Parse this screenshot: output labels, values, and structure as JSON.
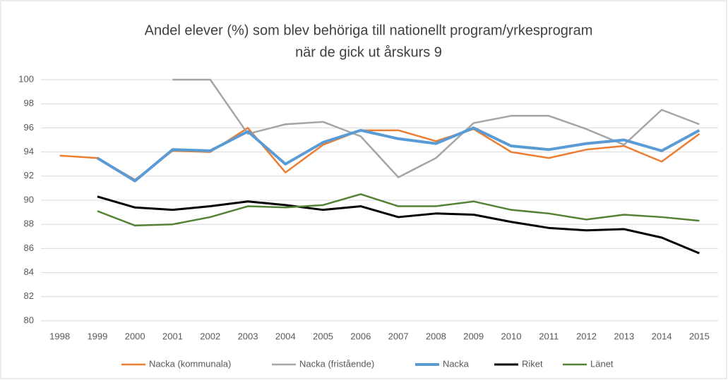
{
  "chart_data": {
    "type": "line",
    "title": [
      "Andel elever (%) som blev behöriga till nationellt program/yrkesprogram",
      "när de gick ut årskurs 9"
    ],
    "categories": [
      "1998",
      "1999",
      "2000",
      "2001",
      "2002",
      "2003",
      "2004",
      "2005",
      "2006",
      "2007",
      "2008",
      "2009",
      "2010",
      "2011",
      "2012",
      "2013",
      "2014",
      "2015"
    ],
    "series": [
      {
        "name": "Nacka (kommunala)",
        "color": "#ed7d31",
        "width": 2.5,
        "values": [
          93.7,
          93.5,
          91.7,
          94.1,
          94.0,
          96.0,
          92.3,
          94.6,
          95.8,
          95.8,
          94.9,
          95.9,
          94.0,
          93.5,
          94.2,
          94.5,
          93.2,
          95.5
        ]
      },
      {
        "name": "Nacka (fristående)",
        "color": "#a5a5a5",
        "width": 2.5,
        "values": [
          null,
          null,
          null,
          100,
          100,
          95.5,
          96.3,
          96.5,
          95.3,
          91.9,
          93.5,
          96.4,
          97.0,
          97.0,
          95.9,
          94.6,
          97.5,
          96.3
        ]
      },
      {
        "name": "Nacka",
        "color": "#5b9bd5",
        "width": 4,
        "values": [
          null,
          93.5,
          91.6,
          94.2,
          94.1,
          95.7,
          93.0,
          94.8,
          95.8,
          95.1,
          94.7,
          96.0,
          94.5,
          94.2,
          94.7,
          95.0,
          94.1,
          95.8
        ]
      },
      {
        "name": "Riket",
        "color": "#000000",
        "width": 3,
        "values": [
          null,
          90.3,
          89.4,
          89.2,
          89.5,
          89.9,
          89.6,
          89.2,
          89.5,
          88.6,
          88.9,
          88.8,
          88.2,
          87.7,
          87.5,
          87.6,
          86.9,
          85.6
        ]
      },
      {
        "name": "Länet",
        "color": "#548235",
        "width": 2.5,
        "values": [
          null,
          89.1,
          87.9,
          88.0,
          88.6,
          89.5,
          89.4,
          89.6,
          90.5,
          89.5,
          89.5,
          89.9,
          89.2,
          88.9,
          88.4,
          88.8,
          88.6,
          88.3
        ]
      }
    ],
    "ylim": [
      80,
      100
    ],
    "yticks": [
      80,
      82,
      84,
      86,
      88,
      90,
      92,
      94,
      96,
      98,
      100
    ],
    "grid": true,
    "legend": "bottom"
  }
}
